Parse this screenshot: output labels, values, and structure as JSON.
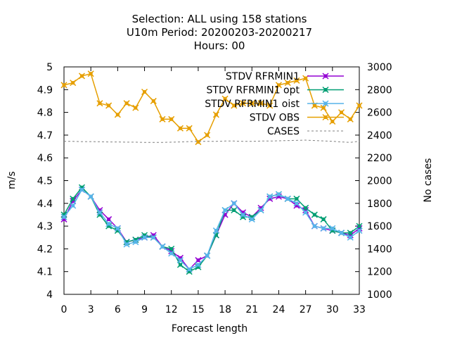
{
  "chart_data": {
    "type": "line",
    "title_lines": [
      "Selection: ALL using   158 stations",
      "U10m   Period: 20200203-20200217",
      "Hours:  00"
    ],
    "xlabel": "Forecast length",
    "ylabel": "m/s",
    "y2label": "No cases",
    "xlim": [
      0,
      33
    ],
    "ylim": [
      4,
      5
    ],
    "y2lim": [
      1000,
      3000
    ],
    "x_ticks": [
      "0",
      "3",
      "6",
      "9",
      "12",
      "15",
      "18",
      "21",
      "24",
      "27",
      "30",
      "33"
    ],
    "y_ticks": [
      "4",
      "4.1",
      "4.2",
      "4.3",
      "4.4",
      "4.5",
      "4.6",
      "4.7",
      "4.8",
      "4.9",
      "5"
    ],
    "y2_ticks": [
      "1000",
      "1200",
      "1400",
      "1600",
      "1800",
      "2000",
      "2200",
      "2400",
      "2600",
      "2800",
      "3000"
    ],
    "grid": false,
    "legend_position": "top-right",
    "x": [
      0,
      1,
      2,
      3,
      4,
      5,
      6,
      7,
      8,
      9,
      10,
      11,
      12,
      13,
      14,
      15,
      16,
      17,
      18,
      19,
      20,
      21,
      22,
      23,
      24,
      25,
      26,
      27,
      28,
      29,
      30,
      31,
      32,
      33
    ],
    "series": [
      {
        "name": "STDV RFRMIN1",
        "axis": "y1",
        "color": "#9400d3",
        "marker": "x",
        "values": [
          4.33,
          4.41,
          4.46,
          4.43,
          4.37,
          4.33,
          4.29,
          4.23,
          4.24,
          4.25,
          4.26,
          4.21,
          4.19,
          4.16,
          4.11,
          4.15,
          4.17,
          4.26,
          4.35,
          4.4,
          4.36,
          4.34,
          4.38,
          4.42,
          4.43,
          4.42,
          4.39,
          4.37,
          4.3,
          4.29,
          4.28,
          4.27,
          4.26,
          4.29
        ]
      },
      {
        "name": "STDV RFRMIN1 opt",
        "axis": "y1",
        "color": "#009e73",
        "marker": "x",
        "values": [
          4.35,
          4.42,
          4.47,
          4.43,
          4.35,
          4.3,
          4.28,
          4.23,
          4.24,
          4.26,
          4.25,
          4.21,
          4.2,
          4.13,
          4.1,
          4.12,
          4.17,
          4.26,
          4.37,
          4.37,
          4.34,
          4.34,
          4.37,
          4.43,
          4.44,
          4.42,
          4.42,
          4.38,
          4.35,
          4.33,
          4.28,
          4.27,
          4.27,
          4.3
        ]
      },
      {
        "name": "STDV RFRMIN1 oist",
        "axis": "y1",
        "color": "#56b4e9",
        "marker": "x",
        "values": [
          4.34,
          4.39,
          4.46,
          4.43,
          4.36,
          4.31,
          4.29,
          4.22,
          4.23,
          4.25,
          4.25,
          4.21,
          4.18,
          4.15,
          4.11,
          4.13,
          4.17,
          4.28,
          4.37,
          4.4,
          4.35,
          4.33,
          4.37,
          4.43,
          4.44,
          4.42,
          4.4,
          4.36,
          4.3,
          4.29,
          4.29,
          4.27,
          4.25,
          4.28
        ]
      },
      {
        "name": "STDV OBS",
        "axis": "y1",
        "color": "#e69f00",
        "marker": "x",
        "values": [
          4.92,
          4.93,
          4.96,
          4.97,
          4.84,
          4.83,
          4.79,
          4.84,
          4.82,
          4.89,
          4.85,
          4.77,
          4.77,
          4.73,
          4.73,
          4.67,
          4.7,
          4.79,
          4.86,
          4.83,
          4.84,
          4.84,
          4.84,
          4.83,
          4.92,
          4.93,
          4.94,
          4.95,
          4.83,
          4.82,
          4.76,
          4.8,
          4.77,
          4.83
        ]
      },
      {
        "name": "CASES",
        "axis": "y2",
        "color": "#808080",
        "dashed": true,
        "marker": "none",
        "values": [
          2345,
          2345,
          2343,
          2343,
          2342,
          2340,
          2340,
          2338,
          2338,
          2336,
          2336,
          2336,
          2338,
          2340,
          2343,
          2345,
          2345,
          2345,
          2348,
          2348,
          2345,
          2345,
          2348,
          2348,
          2350,
          2352,
          2354,
          2356,
          2352,
          2349,
          2346,
          2340,
          2336,
          2346
        ]
      }
    ]
  }
}
